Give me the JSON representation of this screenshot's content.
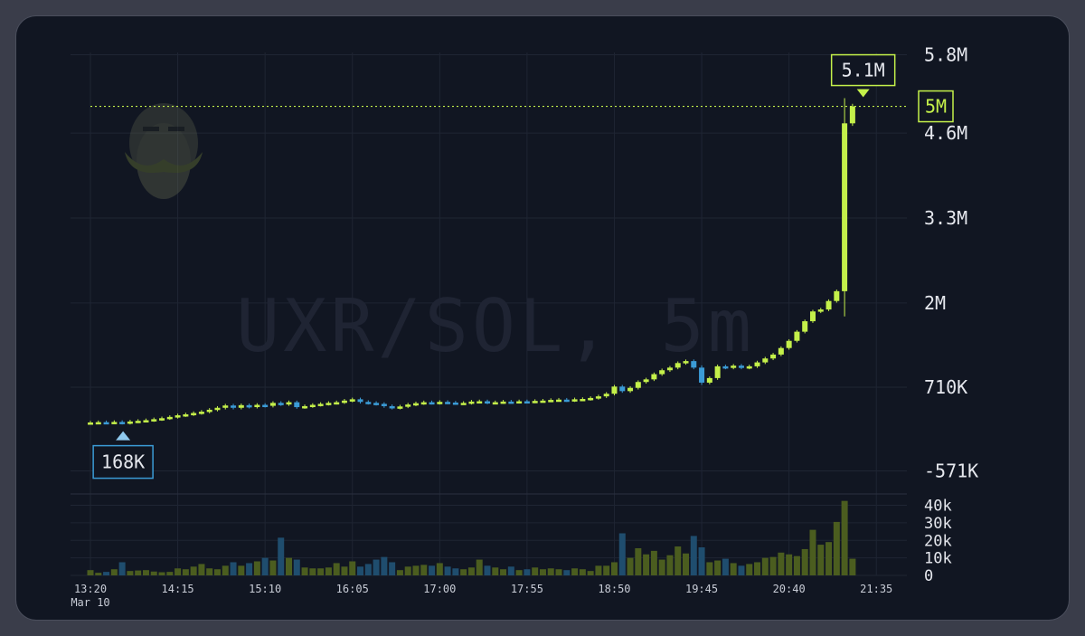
{
  "chart_data": {
    "type": "candlestick",
    "watermark": "UXR/SOL, 5m",
    "price_axis": {
      "ticks": [
        {
          "value": 5800000,
          "label": "5.8M"
        },
        {
          "value": 4600000,
          "label": "4.6M"
        },
        {
          "value": 3300000,
          "label": "3.3M"
        },
        {
          "value": 2000000,
          "label": "2M"
        },
        {
          "value": 710000,
          "label": "710K"
        },
        {
          "value": -571000,
          "label": "-571K"
        }
      ]
    },
    "volume_axis": {
      "ticks": [
        {
          "value": 40000,
          "label": "40k"
        },
        {
          "value": 30000,
          "label": "30k"
        },
        {
          "value": 20000,
          "label": "20k"
        },
        {
          "value": 10000,
          "label": "10k"
        },
        {
          "value": 0,
          "label": "0"
        }
      ]
    },
    "time_axis": {
      "ticks": [
        {
          "index": 0,
          "label": "13:20",
          "sublabel": "Mar 10"
        },
        {
          "index": 11,
          "label": "14:15"
        },
        {
          "index": 22,
          "label": "15:10"
        },
        {
          "index": 33,
          "label": "16:05"
        },
        {
          "index": 44,
          "label": "17:00"
        },
        {
          "index": 55,
          "label": "17:55"
        },
        {
          "index": 66,
          "label": "18:50"
        },
        {
          "index": 77,
          "label": "19:45"
        },
        {
          "index": 88,
          "label": "20:40"
        },
        {
          "index": 99,
          "label": "21:35"
        }
      ]
    },
    "high_marker": {
      "label": "5.1M",
      "index": 97
    },
    "low_marker": {
      "label": "168K",
      "index": 4
    },
    "last_price": {
      "label": "5M",
      "value": 5010000
    },
    "colors": {
      "up": "#c4f04a",
      "down": "#3b9bd6",
      "background": "#111622",
      "grid": "#1f2533"
    },
    "candles": [
      {
        "c": 170000,
        "v": 3000
      },
      {
        "c": 175000,
        "v": 1500
      },
      {
        "c": 172000,
        "v": 2000
      },
      {
        "c": 178000,
        "v": 3500
      },
      {
        "c": 165000,
        "v": 7500
      },
      {
        "c": 185000,
        "v": 2500
      },
      {
        "c": 195000,
        "v": 2800
      },
      {
        "c": 205000,
        "v": 3000
      },
      {
        "c": 220000,
        "v": 2200
      },
      {
        "c": 235000,
        "v": 1800
      },
      {
        "c": 255000,
        "v": 2000
      },
      {
        "c": 280000,
        "v": 4000
      },
      {
        "c": 295000,
        "v": 3500
      },
      {
        "c": 315000,
        "v": 5000
      },
      {
        "c": 335000,
        "v": 6500
      },
      {
        "c": 365000,
        "v": 4000
      },
      {
        "c": 395000,
        "v": 3500
      },
      {
        "c": 430000,
        "v": 5500
      },
      {
        "c": 395000,
        "v": 7500
      },
      {
        "c": 435000,
        "v": 5500
      },
      {
        "c": 410000,
        "v": 7000
      },
      {
        "c": 440000,
        "v": 8000
      },
      {
        "c": 425000,
        "v": 10000
      },
      {
        "c": 470000,
        "v": 8500
      },
      {
        "c": 450000,
        "v": 21500
      },
      {
        "c": 480000,
        "v": 10000
      },
      {
        "c": 405000,
        "v": 9000
      },
      {
        "c": 420000,
        "v": 4500
      },
      {
        "c": 440000,
        "v": 4000
      },
      {
        "c": 455000,
        "v": 4000
      },
      {
        "c": 470000,
        "v": 4500
      },
      {
        "c": 480000,
        "v": 7000
      },
      {
        "c": 505000,
        "v": 5000
      },
      {
        "c": 525000,
        "v": 8000
      },
      {
        "c": 485000,
        "v": 5000
      },
      {
        "c": 470000,
        "v": 6500
      },
      {
        "c": 455000,
        "v": 9000
      },
      {
        "c": 420000,
        "v": 10500
      },
      {
        "c": 395000,
        "v": 7500
      },
      {
        "c": 415000,
        "v": 3000
      },
      {
        "c": 445000,
        "v": 5000
      },
      {
        "c": 465000,
        "v": 5500
      },
      {
        "c": 480000,
        "v": 6000
      },
      {
        "c": 470000,
        "v": 5500
      },
      {
        "c": 485000,
        "v": 7000
      },
      {
        "c": 475000,
        "v": 5000
      },
      {
        "c": 465000,
        "v": 4000
      },
      {
        "c": 470000,
        "v": 3500
      },
      {
        "c": 490000,
        "v": 4500
      },
      {
        "c": 495000,
        "v": 9000
      },
      {
        "c": 475000,
        "v": 5500
      },
      {
        "c": 480000,
        "v": 4500
      },
      {
        "c": 490000,
        "v": 3500
      },
      {
        "c": 485000,
        "v": 5000
      },
      {
        "c": 495000,
        "v": 3000
      },
      {
        "c": 490000,
        "v": 3500
      },
      {
        "c": 500000,
        "v": 4500
      },
      {
        "c": 505000,
        "v": 3500
      },
      {
        "c": 515000,
        "v": 4000
      },
      {
        "c": 520000,
        "v": 3500
      },
      {
        "c": 510000,
        "v": 3000
      },
      {
        "c": 525000,
        "v": 4000
      },
      {
        "c": 530000,
        "v": 3500
      },
      {
        "c": 545000,
        "v": 2500
      },
      {
        "c": 570000,
        "v": 5500
      },
      {
        "c": 610000,
        "v": 5500
      },
      {
        "c": 720000,
        "v": 7500
      },
      {
        "c": 650000,
        "v": 24000
      },
      {
        "c": 700000,
        "v": 10000
      },
      {
        "c": 790000,
        "v": 15500
      },
      {
        "c": 830000,
        "v": 12000
      },
      {
        "c": 910000,
        "v": 14000
      },
      {
        "c": 970000,
        "v": 9000
      },
      {
        "c": 1010000,
        "v": 11500
      },
      {
        "c": 1080000,
        "v": 16500
      },
      {
        "c": 1110000,
        "v": 12500
      },
      {
        "c": 1010000,
        "v": 22500
      },
      {
        "c": 780000,
        "v": 16000
      },
      {
        "c": 850000,
        "v": 7500
      },
      {
        "c": 1030000,
        "v": 8500
      },
      {
        "c": 1010000,
        "v": 9500
      },
      {
        "c": 1040000,
        "v": 7000
      },
      {
        "c": 1010000,
        "v": 5500
      },
      {
        "c": 1030000,
        "v": 6500
      },
      {
        "c": 1090000,
        "v": 7500
      },
      {
        "c": 1150000,
        "v": 10000
      },
      {
        "c": 1210000,
        "v": 10500
      },
      {
        "c": 1310000,
        "v": 13000
      },
      {
        "c": 1420000,
        "v": 12000
      },
      {
        "c": 1560000,
        "v": 11000
      },
      {
        "c": 1720000,
        "v": 15000
      },
      {
        "c": 1870000,
        "v": 26000
      },
      {
        "c": 1900000,
        "v": 17500
      },
      {
        "c": 2030000,
        "v": 19000
      },
      {
        "c": 2180000,
        "v": 30500
      },
      {
        "c": 4750000,
        "v": 42500
      },
      {
        "c": 5010000,
        "v": 9500
      }
    ]
  }
}
